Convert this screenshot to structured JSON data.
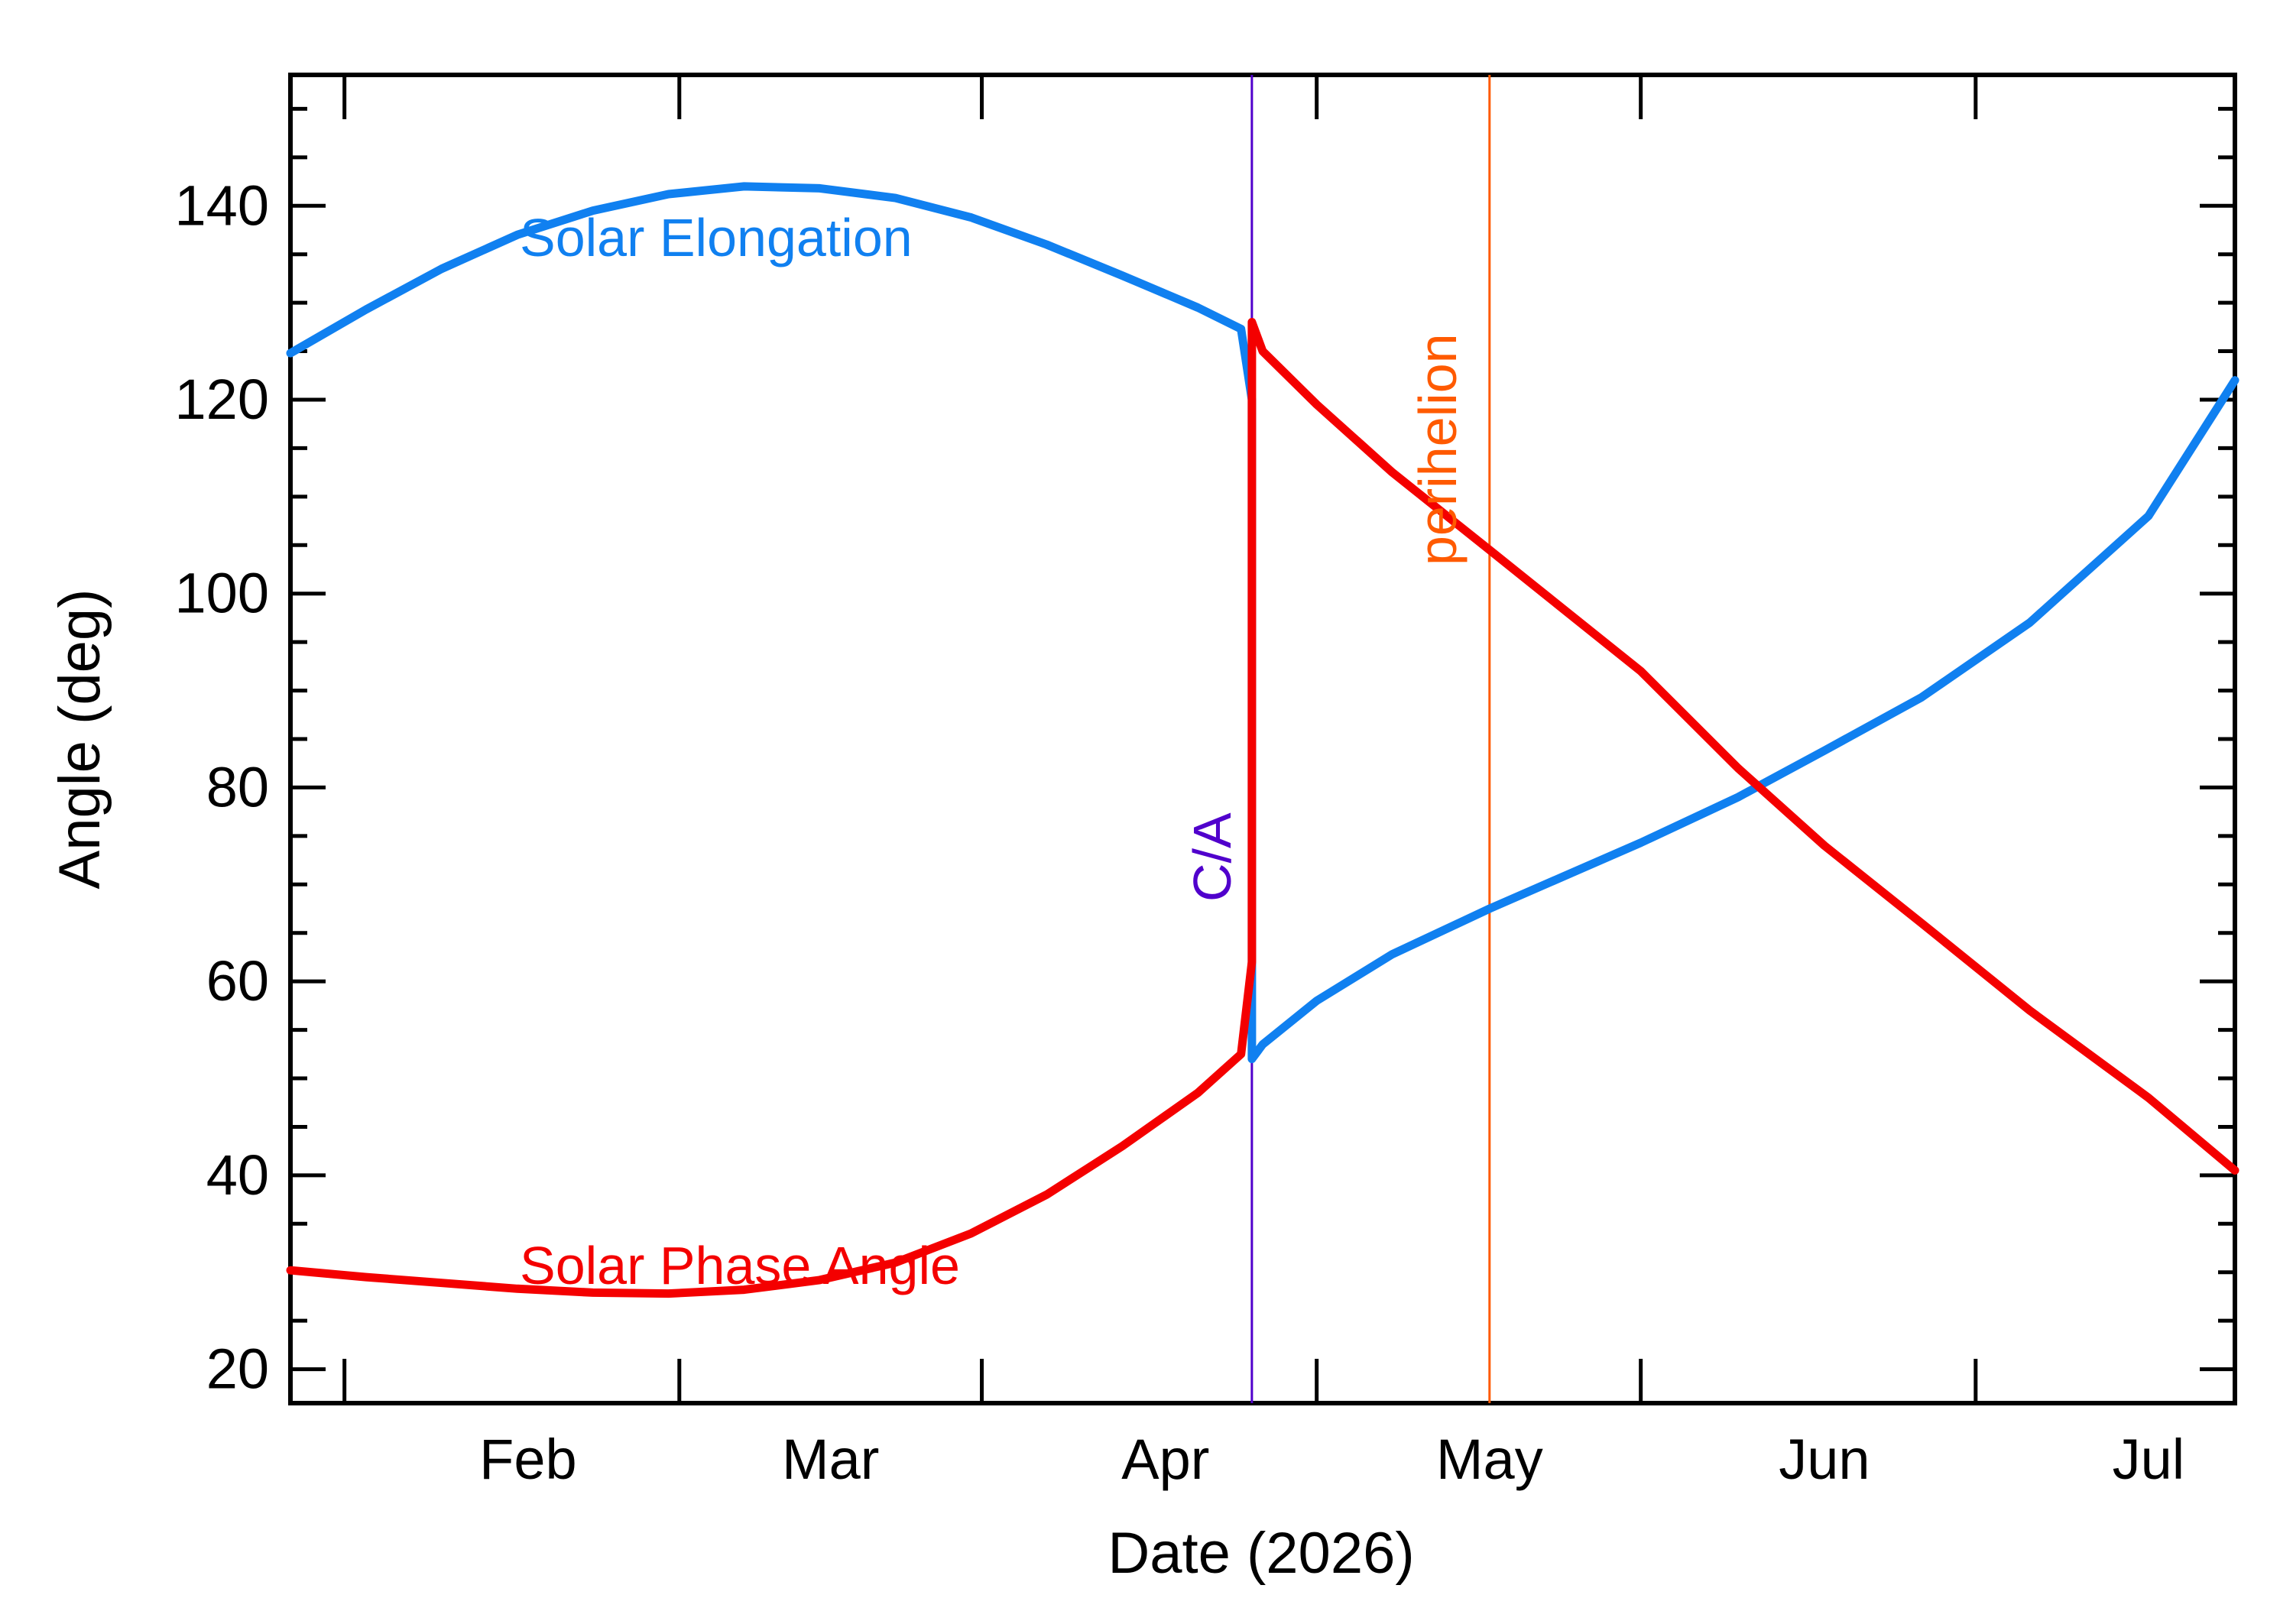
{
  "chart_data": {
    "type": "line",
    "title": "",
    "xlabel": "Date (2026)",
    "ylabel": "Angle (deg)",
    "xlim": [
      "2026-01-10",
      "2026-07-09"
    ],
    "ylim": [
      16.5,
      153.5
    ],
    "x_ticks": [
      {
        "label": "Feb",
        "date": "2026-02-01"
      },
      {
        "label": "Mar",
        "date": "2026-03-01"
      },
      {
        "label": "Apr",
        "date": "2026-04-01"
      },
      {
        "label": "May",
        "date": "2026-05-01"
      },
      {
        "label": "Jun",
        "date": "2026-06-01"
      },
      {
        "label": "Jul",
        "date": "2026-07-01"
      }
    ],
    "y_ticks": [
      20,
      40,
      60,
      80,
      100,
      120,
      140
    ],
    "y_minor_step": 5,
    "grid": false,
    "series": [
      {
        "name": "Solar Elongation",
        "color": "#1080f0",
        "points": [
          [
            "2026-01-10",
            124.8
          ],
          [
            "2026-01-17",
            129.3
          ],
          [
            "2026-01-24",
            133.5
          ],
          [
            "2026-01-31",
            137.0
          ],
          [
            "2026-02-07",
            139.5
          ],
          [
            "2026-02-14",
            141.2
          ],
          [
            "2026-02-21",
            142.0
          ],
          [
            "2026-02-28",
            141.8
          ],
          [
            "2026-03-07",
            140.8
          ],
          [
            "2026-03-14",
            138.8
          ],
          [
            "2026-03-21",
            136.0
          ],
          [
            "2026-03-28",
            132.8
          ],
          [
            "2026-04-04",
            129.5
          ],
          [
            "2026-04-08",
            127.3
          ],
          [
            "2026-04-09",
            120.0
          ],
          [
            "2026-04-09",
            52.0
          ],
          [
            "2026-04-10",
            53.5
          ],
          [
            "2026-04-15",
            58.0
          ],
          [
            "2026-04-22",
            62.8
          ],
          [
            "2026-05-01",
            67.5
          ],
          [
            "2026-05-15",
            74.3
          ],
          [
            "2026-05-24",
            79.0
          ],
          [
            "2026-06-01",
            83.8
          ],
          [
            "2026-06-10",
            89.3
          ],
          [
            "2026-06-20",
            97.0
          ],
          [
            "2026-07-01",
            108.0
          ],
          [
            "2026-07-09",
            122.0
          ]
        ]
      },
      {
        "name": "Solar Phase Angle",
        "color": "#f40000",
        "points": [
          [
            "2026-01-10",
            30.2
          ],
          [
            "2026-01-17",
            29.5
          ],
          [
            "2026-01-24",
            28.9
          ],
          [
            "2026-01-31",
            28.3
          ],
          [
            "2026-02-07",
            27.9
          ],
          [
            "2026-02-14",
            27.8
          ],
          [
            "2026-02-21",
            28.2
          ],
          [
            "2026-02-28",
            29.2
          ],
          [
            "2026-03-07",
            31.0
          ],
          [
            "2026-03-14",
            34.0
          ],
          [
            "2026-03-21",
            38.0
          ],
          [
            "2026-03-28",
            43.0
          ],
          [
            "2026-04-04",
            48.5
          ],
          [
            "2026-04-08",
            52.5
          ],
          [
            "2026-04-09",
            62.0
          ],
          [
            "2026-04-09",
            128.0
          ],
          [
            "2026-04-10",
            125.0
          ],
          [
            "2026-04-15",
            119.5
          ],
          [
            "2026-04-22",
            112.5
          ],
          [
            "2026-05-01",
            104.5
          ],
          [
            "2026-05-15",
            92.0
          ],
          [
            "2026-05-24",
            82.0
          ],
          [
            "2026-06-01",
            74.0
          ],
          [
            "2026-06-10",
            66.0
          ],
          [
            "2026-06-20",
            57.0
          ],
          [
            "2026-07-01",
            48.0
          ],
          [
            "2026-07-09",
            40.5
          ]
        ]
      }
    ],
    "vertical_lines": [
      {
        "name": "C/A",
        "date": "2026-04-09",
        "color": "#5000cc"
      },
      {
        "name": "perihelion",
        "date": "2026-05-01",
        "color": "#ff5a00"
      }
    ]
  },
  "labels": {
    "elongation": "Solar Elongation",
    "phase": "Solar Phase Angle",
    "ca": "C/A",
    "perihelion": "perihelion"
  }
}
